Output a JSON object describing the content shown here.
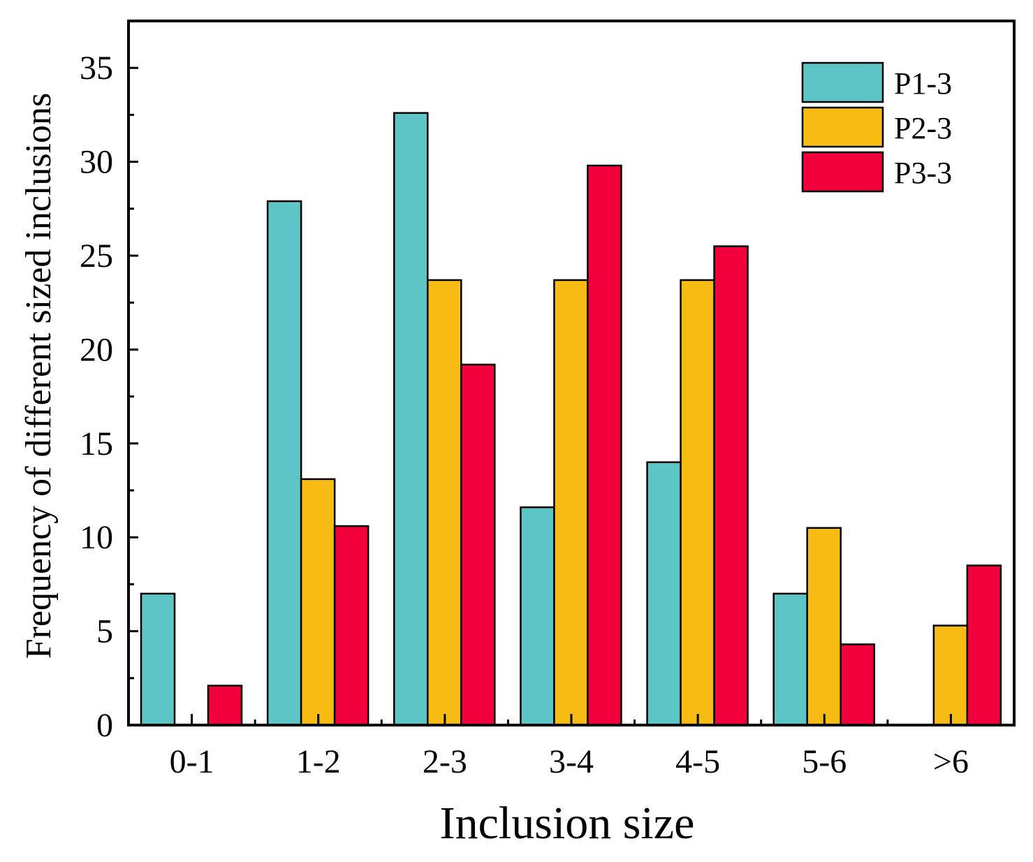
{
  "chart_data": {
    "type": "bar",
    "xlabel": "Inclusion size",
    "ylabel": "Frequency of different sized inclusions",
    "categories": [
      "0-1",
      "1-2",
      "2-3",
      "3-4",
      "4-5",
      "5-6",
      ">6"
    ],
    "ylim": [
      0,
      37.5
    ],
    "yticks": [
      0,
      5,
      10,
      15,
      20,
      25,
      30,
      35
    ],
    "legend_position": "top-right",
    "series": [
      {
        "name": "P1-3",
        "color": "#5ec5c7",
        "values": [
          7.0,
          27.9,
          32.6,
          11.6,
          14.0,
          7.0,
          0
        ]
      },
      {
        "name": "P2-3",
        "color": "#f7bb14",
        "values": [
          0,
          13.1,
          23.7,
          23.7,
          23.7,
          10.5,
          5.3
        ]
      },
      {
        "name": "P3-3",
        "color": "#f2003c",
        "values": [
          2.1,
          10.6,
          19.2,
          29.8,
          25.5,
          4.3,
          8.5
        ]
      }
    ]
  }
}
